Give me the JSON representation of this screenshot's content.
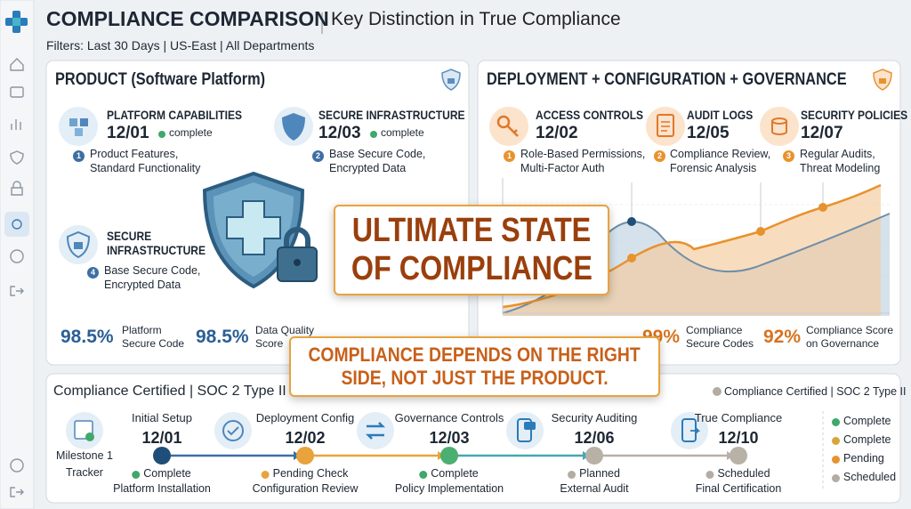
{
  "header": {
    "title": "COMPLIANCE COMPARISON",
    "subtitle": "Key Distinction in True Compliance",
    "filters": "Filters: Last 30 Days | US-East | All Departments"
  },
  "product_panel": {
    "title": "PRODUCT (Software Platform)",
    "items": [
      {
        "title": [
          "PLATFORM CAPABILITIES"
        ],
        "date": "12/01",
        "status": "complete",
        "step": "1",
        "description": [
          "Product Features,",
          "Standard Functionality"
        ]
      },
      {
        "title": [
          "SECURE INFRASTRUCTURE"
        ],
        "date": "12/03",
        "status": "complete",
        "step": "2",
        "description": [
          "Base Secure Code,",
          "Encrypted Data"
        ]
      },
      {
        "title": [
          "SECURE",
          "INFRASTRUCTURE"
        ],
        "step": "4",
        "description": [
          "Base Secure Code,",
          "Encrypted Data"
        ]
      }
    ],
    "metrics": [
      {
        "value": "98.5%",
        "label": [
          "Platform",
          "Secure Code"
        ]
      },
      {
        "value": "98.5%",
        "label": [
          "Data Quality",
          "Score"
        ]
      }
    ]
  },
  "governance_panel": {
    "title": "DEPLOYMENT + CONFIGURATION + GOVERNANCE",
    "items": [
      {
        "title": [
          "ACCESS CONTROLS"
        ],
        "date": "12/02",
        "step": "1",
        "description": [
          "Role-Based Permissions,",
          "Multi-Factor Auth"
        ]
      },
      {
        "title": [
          "AUDIT LOGS"
        ],
        "date": "12/05",
        "step": "2",
        "description": [
          "Compliance Review,",
          "Forensic Analysis"
        ]
      },
      {
        "title": [
          "SECURITY POLICIES"
        ],
        "date": "12/07",
        "step": "3",
        "description": [
          "Regular Audits,",
          "Threat Modeling"
        ]
      }
    ],
    "metrics": [
      {
        "value": "99%",
        "label": [
          "Compliance",
          "Secure Codes"
        ]
      },
      {
        "value": "92%",
        "label": [
          "Compliance Score",
          "on Governance"
        ]
      }
    ]
  },
  "callouts": {
    "headline": [
      "ULTIMATE STATE",
      "OF COMPLIANCE"
    ],
    "note": [
      "COMPLIANCE DEPENDS ON THE RIGHT",
      "SIDE, NOT JUST THE PRODUCT."
    ]
  },
  "timeline": {
    "title": "Compliance Certified | SOC 2 Type II",
    "badge": "Compliance Certified | SOC 2 Type II",
    "tracker": [
      "Milestone 1",
      "Tracker"
    ],
    "milestones": [
      {
        "name": "Initial Setup",
        "date": "12/01",
        "status": "Complete",
        "description": "Platform Installation",
        "color": "#1f4e79"
      },
      {
        "name": "Deployment Config",
        "date": "12/02",
        "status": "Pending Check",
        "description": "Configuration Review",
        "color": "#e8a33d"
      },
      {
        "name": "Governance Controls",
        "date": "12/03",
        "status": "Complete",
        "description": "Policy Implementation",
        "color": "#4caf72"
      },
      {
        "name": "Security Auditing",
        "date": "12/06",
        "status": "Planned",
        "description": "External Audit",
        "color": "#b8b1a6"
      },
      {
        "name": "True Compliance",
        "date": "12/10",
        "status": "Scheduled",
        "description": "Final Certification",
        "color": "#b8b1a6"
      }
    ],
    "legend": [
      {
        "label": "Complete",
        "color": "#3fa86b"
      },
      {
        "label": "Complete",
        "color": "#d9a53a"
      },
      {
        "label": "Pending",
        "color": "#e8922d"
      },
      {
        "label": "Scheduled",
        "color": "#b3aca2"
      }
    ]
  }
}
